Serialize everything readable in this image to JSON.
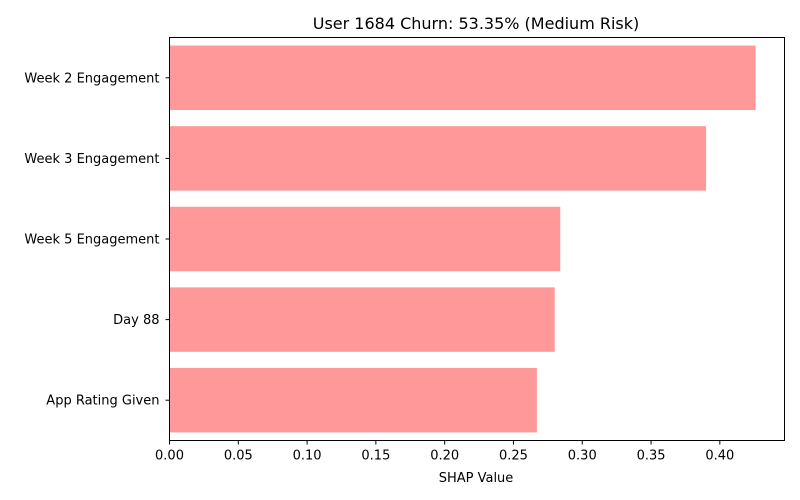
{
  "chart_data": {
    "type": "bar",
    "orientation": "horizontal",
    "title": "User 1684 Churn: 53.35% (Medium Risk)",
    "xlabel": "SHAP Value",
    "ylabel": "",
    "categories": [
      "Week 2 Engagement",
      "Week 3 Engagement",
      "Week 5 Engagement",
      "Day 88",
      "App Rating Given"
    ],
    "values": [
      0.426,
      0.39,
      0.284,
      0.28,
      0.267
    ],
    "xlim": [
      0,
      0.447
    ],
    "xticks": [
      0.0,
      0.05,
      0.1,
      0.15,
      0.2,
      0.25,
      0.3,
      0.35,
      0.4
    ],
    "xtick_labels": [
      "0.00",
      "0.05",
      "0.10",
      "0.15",
      "0.20",
      "0.25",
      "0.30",
      "0.35",
      "0.40"
    ],
    "bar_color": "#ff9999",
    "grid": false
  }
}
